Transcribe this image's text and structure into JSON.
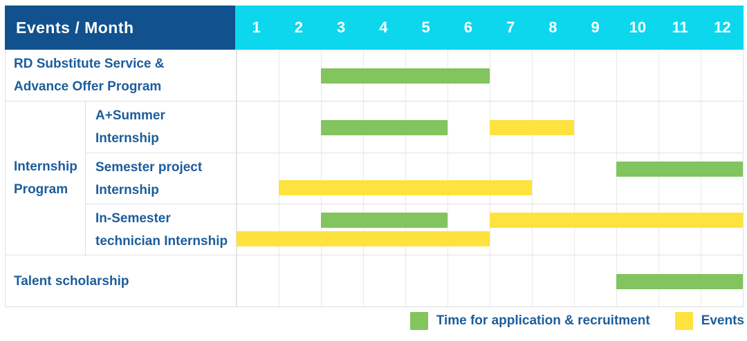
{
  "header": {
    "title": "Events / Month",
    "months": [
      "1",
      "2",
      "3",
      "4",
      "5",
      "6",
      "7",
      "8",
      "9",
      "10",
      "11",
      "12"
    ]
  },
  "group": {
    "lines": [
      "Internship",
      "Program"
    ]
  },
  "rows": [
    {
      "lines": [
        "RD Substitute Service &",
        "Advance Offer Program"
      ],
      "in_group": false,
      "bars": [
        {
          "type": "recruitment",
          "start": 3,
          "end": 6,
          "line": "center"
        }
      ]
    },
    {
      "lines": [
        "A+Summer",
        "Internship"
      ],
      "in_group": true,
      "bars": [
        {
          "type": "recruitment",
          "start": 3,
          "end": 5,
          "line": "center"
        },
        {
          "type": "event",
          "start": 7,
          "end": 8,
          "line": "center"
        }
      ]
    },
    {
      "lines": [
        "Semester project",
        "Internship"
      ],
      "in_group": true,
      "bars": [
        {
          "type": "recruitment",
          "start": 10,
          "end": 12,
          "line": "top"
        },
        {
          "type": "event",
          "start": 2,
          "end": 7,
          "line": "bottom"
        }
      ]
    },
    {
      "lines": [
        "In-Semester",
        "technician Internship"
      ],
      "in_group": true,
      "bars": [
        {
          "type": "recruitment",
          "start": 3,
          "end": 5,
          "line": "top"
        },
        {
          "type": "event",
          "start": 7,
          "end": 12,
          "line": "top"
        },
        {
          "type": "event",
          "start": 1,
          "end": 6,
          "line": "bottom"
        }
      ]
    },
    {
      "lines": [
        "Talent scholarship"
      ],
      "in_group": false,
      "bars": [
        {
          "type": "recruitment",
          "start": 10,
          "end": 12,
          "line": "center"
        }
      ]
    }
  ],
  "legend": {
    "items": [
      {
        "swatch": "green",
        "label": "Time for application & recruitment"
      },
      {
        "swatch": "yellow",
        "label": "Events"
      }
    ]
  },
  "colors": {
    "navy_header_bg": "#11518e",
    "cyan_header_bg": "#0cd7ed",
    "row_label_text": "#1c5d9c",
    "bar_green": "#82c45d",
    "bar_yellow": "#fee23e",
    "grid_line": "#e0e0e0",
    "grid_line_light": "#e9e9e9"
  },
  "chart_data": {
    "type": "bar",
    "subtype": "gantt",
    "title": "Events / Month",
    "x_ticks": [
      1,
      2,
      3,
      4,
      5,
      6,
      7,
      8,
      9,
      10,
      11,
      12
    ],
    "x_range": [
      1,
      12
    ],
    "legend_position": "bottom-right",
    "series_legend": [
      {
        "name": "Time for application & recruitment",
        "color": "#82c45d"
      },
      {
        "name": "Events",
        "color": "#fee23e"
      }
    ],
    "tasks": [
      {
        "row": "RD Substitute Service & Advance Offer Program",
        "bars": [
          {
            "series": "Time for application & recruitment",
            "months": [
              3,
              6
            ]
          }
        ]
      },
      {
        "row": "Internship Program - A+Summer Internship",
        "bars": [
          {
            "series": "Time for application & recruitment",
            "months": [
              3,
              5
            ]
          },
          {
            "series": "Events",
            "months": [
              7,
              8
            ]
          }
        ]
      },
      {
        "row": "Internship Program - Semester project Internship",
        "bars": [
          {
            "series": "Time for application & recruitment",
            "months": [
              10,
              12
            ]
          },
          {
            "series": "Events",
            "months": [
              2,
              7
            ]
          }
        ]
      },
      {
        "row": "Internship Program - In-Semester technician Internship",
        "bars": [
          {
            "series": "Time for application & recruitment",
            "months": [
              3,
              5
            ]
          },
          {
            "series": "Events",
            "months": [
              7,
              12
            ]
          },
          {
            "series": "Events",
            "months": [
              1,
              6
            ]
          }
        ]
      },
      {
        "row": "Talent scholarship",
        "bars": [
          {
            "series": "Time for application & recruitment",
            "months": [
              10,
              12
            ]
          }
        ]
      }
    ]
  }
}
